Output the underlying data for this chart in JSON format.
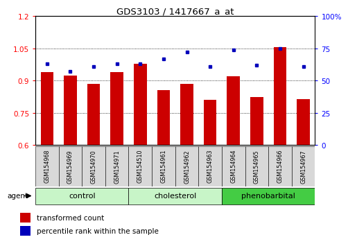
{
  "title": "GDS3103 / 1417667_a_at",
  "samples": [
    "GSM154968",
    "GSM154969",
    "GSM154970",
    "GSM154971",
    "GSM154510",
    "GSM154961",
    "GSM154962",
    "GSM154963",
    "GSM154964",
    "GSM154965",
    "GSM154966",
    "GSM154967"
  ],
  "transformed_count": [
    0.94,
    0.925,
    0.885,
    0.94,
    0.98,
    0.855,
    0.885,
    0.81,
    0.92,
    0.825,
    1.055,
    0.815
  ],
  "percentile_rank_pct": [
    63,
    57,
    61,
    63,
    63,
    67,
    72,
    61,
    74,
    62,
    75,
    61
  ],
  "group_info": [
    {
      "label": "control",
      "start": 0,
      "end": 3,
      "color": "#c8f5c8"
    },
    {
      "label": "cholesterol",
      "start": 4,
      "end": 7,
      "color": "#c8f5c8"
    },
    {
      "label": "phenobarbital",
      "start": 8,
      "end": 11,
      "color": "#44cc44"
    }
  ],
  "bar_color": "#cc0000",
  "marker_color": "#0000bb",
  "ylim_left": [
    0.6,
    1.2
  ],
  "ylim_right": [
    0,
    100
  ],
  "yticks_left": [
    0.6,
    0.75,
    0.9,
    1.05,
    1.2
  ],
  "yticks_right": [
    0,
    25,
    50,
    75,
    100
  ],
  "yticklabels_left": [
    "0.6",
    "0.75",
    "0.9",
    "1.05",
    "1.2"
  ],
  "yticklabels_right": [
    "0",
    "25",
    "50",
    "75",
    "100%"
  ],
  "bar_bottom": 0.6,
  "tick_label_bg": "#d8d8d8",
  "agent_label": "agent",
  "legend_items": [
    "transformed count",
    "percentile rank within the sample"
  ]
}
